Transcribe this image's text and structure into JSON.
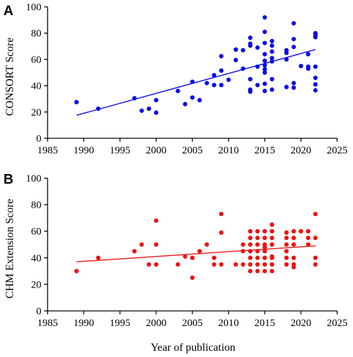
{
  "figure": {
    "xlabel": "Year of publication"
  },
  "chart_data": [
    {
      "type": "scatter",
      "panel": "A",
      "title": "",
      "xlabel": "",
      "ylabel": "CONSORT Score",
      "xlim": [
        1985,
        2025
      ],
      "ylim": [
        0,
        100
      ],
      "xticks": [
        1985,
        1990,
        1995,
        2000,
        2005,
        2010,
        2015,
        2020,
        2025
      ],
      "yticks": [
        0,
        20,
        40,
        60,
        80,
        100
      ],
      "grid": false,
      "point_color": "#0a0ae6",
      "line_color": "#0a0ae6",
      "trendline": {
        "x": [
          1989,
          2022
        ],
        "y": [
          17.5,
          67.5
        ]
      },
      "points": [
        [
          1989,
          27.5
        ],
        [
          1992,
          22.5
        ],
        [
          1997,
          30.5
        ],
        [
          1998,
          21
        ],
        [
          1999,
          22.5
        ],
        [
          2000,
          19.5
        ],
        [
          2000,
          29
        ],
        [
          2003,
          36
        ],
        [
          2004,
          26
        ],
        [
          2005,
          31
        ],
        [
          2005,
          43
        ],
        [
          2006,
          29
        ],
        [
          2007,
          42
        ],
        [
          2008,
          40.5
        ],
        [
          2008,
          48
        ],
        [
          2009,
          40.5
        ],
        [
          2009,
          51.5
        ],
        [
          2009,
          62.5
        ],
        [
          2010,
          44.5
        ],
        [
          2011,
          59.5
        ],
        [
          2011,
          67.5
        ],
        [
          2012,
          53
        ],
        [
          2012,
          67
        ],
        [
          2013,
          35.5
        ],
        [
          2013,
          37
        ],
        [
          2013,
          45
        ],
        [
          2013,
          70.5
        ],
        [
          2013,
          72
        ],
        [
          2013,
          76.5
        ],
        [
          2014,
          40.5
        ],
        [
          2014,
          54.5
        ],
        [
          2014,
          69
        ],
        [
          2015,
          36
        ],
        [
          2015,
          41.5
        ],
        [
          2015,
          50
        ],
        [
          2015,
          52.5
        ],
        [
          2015,
          55.5
        ],
        [
          2015,
          59
        ],
        [
          2015,
          64
        ],
        [
          2015,
          72.5
        ],
        [
          2015,
          81
        ],
        [
          2015,
          92
        ],
        [
          2016,
          37
        ],
        [
          2016,
          45
        ],
        [
          2016,
          58.5
        ],
        [
          2016,
          61
        ],
        [
          2016,
          66
        ],
        [
          2016,
          70.5
        ],
        [
          2016,
          74
        ],
        [
          2018,
          39
        ],
        [
          2018,
          60
        ],
        [
          2018,
          65
        ],
        [
          2018,
          67
        ],
        [
          2019,
          38.5
        ],
        [
          2019,
          42
        ],
        [
          2019,
          69.5
        ],
        [
          2019,
          75.5
        ],
        [
          2019,
          87.5
        ],
        [
          2020,
          55
        ],
        [
          2021,
          53
        ],
        [
          2021,
          54.5
        ],
        [
          2021,
          64
        ],
        [
          2022,
          36.5
        ],
        [
          2022,
          41
        ],
        [
          2022,
          46
        ],
        [
          2022,
          54.5
        ],
        [
          2022,
          77
        ],
        [
          2022,
          78.5
        ],
        [
          2022,
          80
        ]
      ]
    },
    {
      "type": "scatter",
      "panel": "B",
      "title": "",
      "xlabel": "Year of publication",
      "ylabel": "CHM Extension Score",
      "xlim": [
        1985,
        2025
      ],
      "ylim": [
        0,
        100
      ],
      "xticks": [
        1985,
        1990,
        1995,
        2000,
        2005,
        2010,
        2015,
        2020,
        2025
      ],
      "yticks": [
        0,
        20,
        40,
        60,
        80,
        100
      ],
      "grid": false,
      "point_color": "#ee1111",
      "line_color": "#ee1111",
      "trendline": {
        "x": [
          1989,
          2022
        ],
        "y": [
          37,
          49
        ]
      },
      "points": [
        [
          1989,
          30
        ],
        [
          1992,
          40
        ],
        [
          1997,
          45
        ],
        [
          1998,
          50
        ],
        [
          1999,
          35
        ],
        [
          2000,
          35
        ],
        [
          2000,
          50
        ],
        [
          2000,
          68
        ],
        [
          2003,
          35
        ],
        [
          2004,
          41
        ],
        [
          2005,
          25
        ],
        [
          2005,
          40
        ],
        [
          2006,
          45
        ],
        [
          2007,
          50
        ],
        [
          2008,
          35
        ],
        [
          2008,
          40
        ],
        [
          2009,
          35
        ],
        [
          2009,
          59
        ],
        [
          2009,
          73
        ],
        [
          2011,
          35
        ],
        [
          2012,
          35
        ],
        [
          2012,
          45
        ],
        [
          2012,
          50
        ],
        [
          2013,
          30
        ],
        [
          2013,
          35
        ],
        [
          2013,
          40
        ],
        [
          2013,
          45
        ],
        [
          2013,
          50
        ],
        [
          2013,
          55
        ],
        [
          2013,
          60
        ],
        [
          2014,
          30
        ],
        [
          2014,
          35
        ],
        [
          2014,
          40
        ],
        [
          2014,
          45
        ],
        [
          2014,
          50
        ],
        [
          2014,
          55
        ],
        [
          2014,
          60
        ],
        [
          2015,
          30
        ],
        [
          2015,
          35
        ],
        [
          2015,
          40
        ],
        [
          2015,
          45
        ],
        [
          2015,
          48
        ],
        [
          2015,
          50
        ],
        [
          2015,
          55
        ],
        [
          2015,
          60
        ],
        [
          2016,
          30
        ],
        [
          2016,
          35
        ],
        [
          2016,
          40
        ],
        [
          2016,
          41
        ],
        [
          2016,
          50
        ],
        [
          2016,
          55
        ],
        [
          2016,
          60
        ],
        [
          2016,
          65
        ],
        [
          2018,
          35
        ],
        [
          2018,
          40
        ],
        [
          2018,
          45
        ],
        [
          2018,
          50
        ],
        [
          2018,
          55
        ],
        [
          2018,
          59
        ],
        [
          2019,
          33
        ],
        [
          2019,
          35
        ],
        [
          2019,
          40
        ],
        [
          2019,
          50
        ],
        [
          2019,
          55
        ],
        [
          2019,
          60
        ],
        [
          2020,
          60
        ],
        [
          2021,
          50
        ],
        [
          2021,
          55
        ],
        [
          2021,
          60
        ],
        [
          2022,
          35
        ],
        [
          2022,
          40
        ],
        [
          2022,
          55
        ],
        [
          2022,
          73
        ]
      ]
    }
  ]
}
